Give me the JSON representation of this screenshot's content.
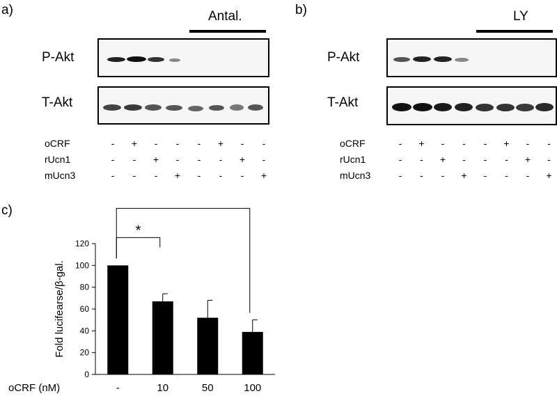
{
  "panel_a": {
    "label": "a)",
    "inhibitor_label": "Antal.",
    "blot_labels": [
      "P-Akt",
      "T-Akt"
    ],
    "treatments": [
      {
        "name": "oCRF",
        "signs": [
          "-",
          "+",
          "-",
          "-",
          "-",
          "+",
          "-",
          "-"
        ]
      },
      {
        "name": "rUcn1",
        "signs": [
          "-",
          "-",
          "+",
          "-",
          "-",
          "-",
          "+",
          "-"
        ]
      },
      {
        "name": "mUcn3",
        "signs": [
          "-",
          "-",
          "-",
          "+",
          "-",
          "-",
          "-",
          "+"
        ]
      }
    ]
  },
  "panel_b": {
    "label": "b)",
    "inhibitor_label": "LY",
    "blot_labels": [
      "P-Akt",
      "T-Akt"
    ],
    "treatments": [
      {
        "name": "oCRF",
        "signs": [
          "-",
          "+",
          "-",
          "-",
          "-",
          "+",
          "-",
          "-"
        ]
      },
      {
        "name": "rUcn1",
        "signs": [
          "-",
          "-",
          "+",
          "-",
          "-",
          "-",
          "+",
          "-"
        ]
      },
      {
        "name": "mUcn3",
        "signs": [
          "-",
          "-",
          "-",
          "+",
          "-",
          "-",
          "-",
          "+"
        ]
      }
    ]
  },
  "panel_c": {
    "label": "c)"
  },
  "chart_data": {
    "type": "bar",
    "title": "",
    "categories": [
      "-",
      "10",
      "50",
      "100"
    ],
    "x_prefix_label": "oCRF (nM)",
    "ylabel": "Fold lucifearse/β-gal.",
    "ylim": [
      0,
      120
    ],
    "yticks": [
      0,
      20,
      40,
      60,
      80,
      100,
      120
    ],
    "values": [
      100,
      67,
      52,
      39
    ],
    "errors": [
      0,
      7,
      16,
      11
    ],
    "bar_color": "#000000",
    "significance": [
      {
        "from": 0,
        "to": 1,
        "label": "*"
      },
      {
        "from": 0,
        "to": 3,
        "label": "*"
      }
    ]
  }
}
